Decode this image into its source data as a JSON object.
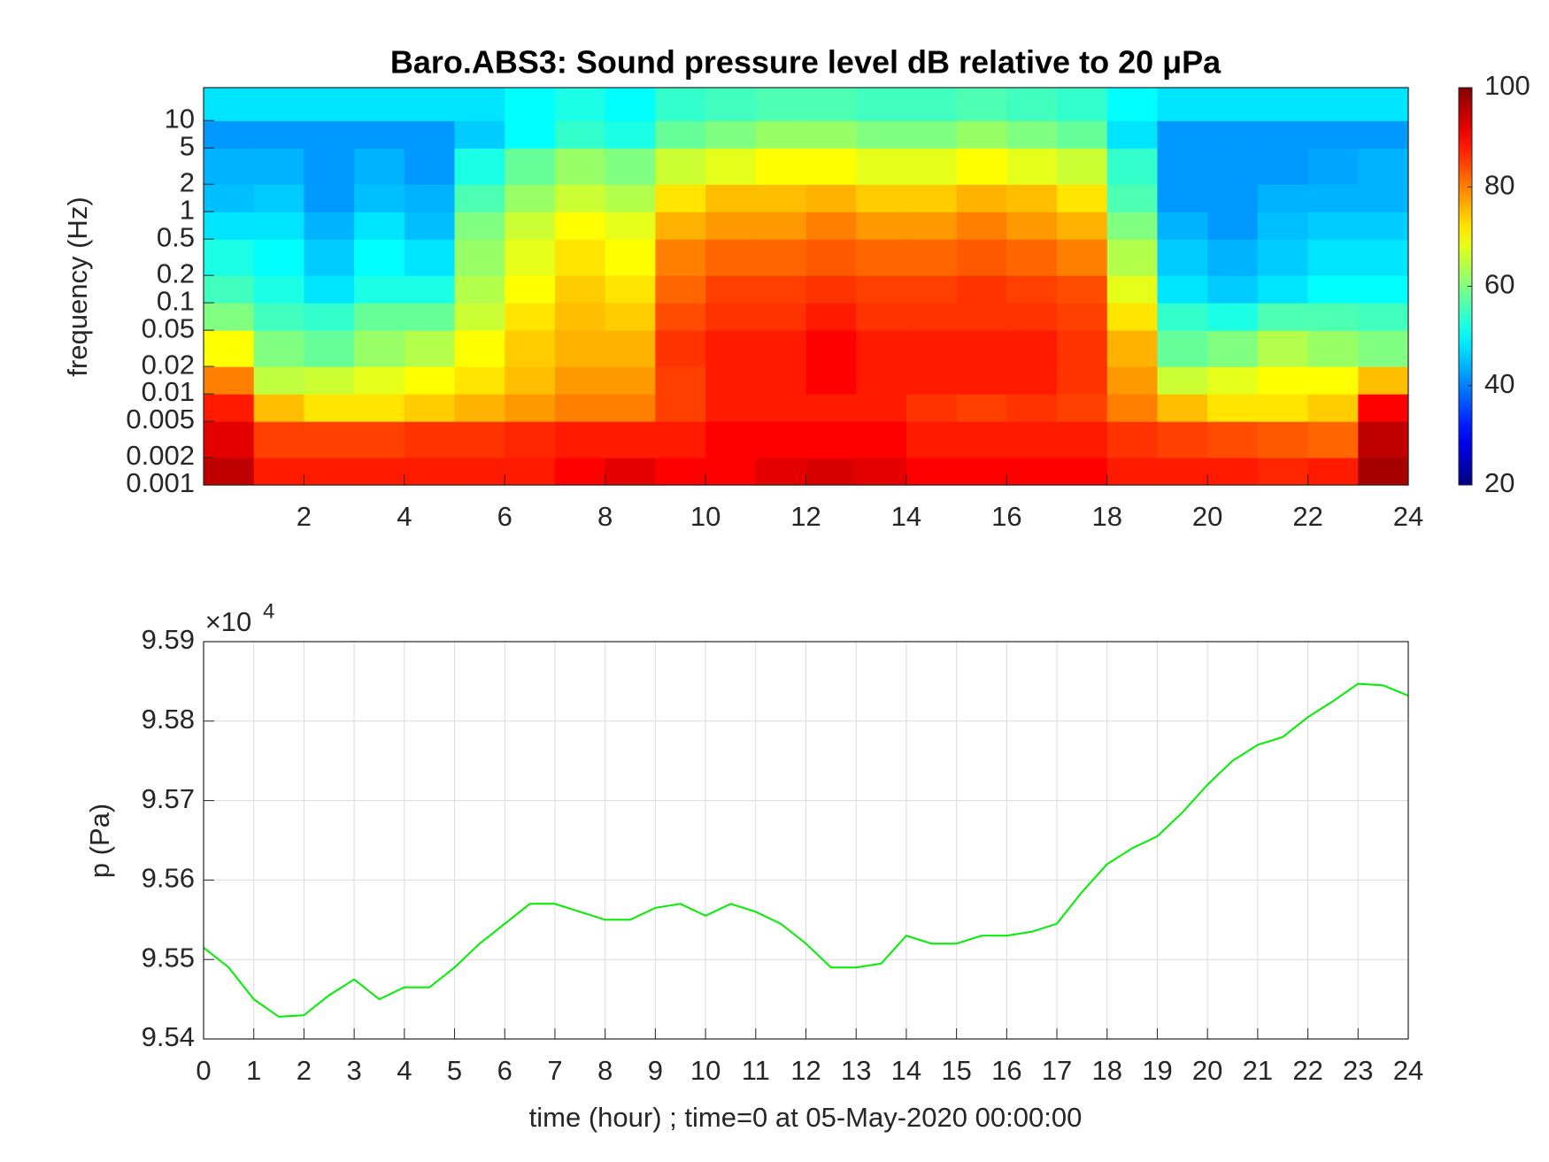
{
  "chart_data": [
    {
      "type": "heatmap",
      "title": "Baro.ABS3: Sound pressure level dB relative to 20 μPa",
      "ylabel": "frequency (Hz)",
      "yscale": "log",
      "colormap": "jet",
      "x_edges": [
        0,
        1,
        2,
        3,
        4,
        5,
        6,
        7,
        8,
        9,
        10,
        11,
        12,
        13,
        14,
        15,
        16,
        17,
        18,
        19,
        20,
        21,
        22,
        23,
        24
      ],
      "y_edges": [
        0.001,
        0.002,
        0.005,
        0.01,
        0.02,
        0.05,
        0.1,
        0.2,
        0.5,
        1,
        2,
        5,
        10,
        23
      ],
      "values": [
        [
          95,
          88,
          88,
          88,
          88,
          88,
          88,
          90,
          92,
          90,
          90,
          92,
          93,
          92,
          90,
          90,
          90,
          90,
          88,
          88,
          88,
          87,
          88,
          97
        ],
        [
          92,
          85,
          85,
          85,
          86,
          86,
          87,
          88,
          88,
          88,
          90,
          90,
          90,
          90,
          88,
          88,
          88,
          88,
          86,
          85,
          84,
          83,
          82,
          95
        ],
        [
          88,
          75,
          72,
          72,
          74,
          76,
          78,
          80,
          80,
          85,
          88,
          88,
          88,
          88,
          86,
          85,
          86,
          85,
          80,
          75,
          72,
          72,
          74,
          90
        ],
        [
          80,
          65,
          66,
          68,
          70,
          72,
          75,
          78,
          78,
          85,
          88,
          88,
          90,
          88,
          88,
          88,
          88,
          86,
          78,
          66,
          68,
          70,
          70,
          75
        ],
        [
          70,
          60,
          58,
          62,
          64,
          70,
          74,
          76,
          76,
          86,
          88,
          88,
          90,
          88,
          88,
          88,
          88,
          86,
          76,
          58,
          60,
          64,
          62,
          60
        ],
        [
          60,
          55,
          54,
          58,
          58,
          66,
          72,
          75,
          74,
          84,
          86,
          86,
          88,
          86,
          86,
          86,
          86,
          85,
          72,
          54,
          52,
          56,
          56,
          55
        ],
        [
          55,
          52,
          48,
          52,
          52,
          64,
          70,
          74,
          72,
          82,
          85,
          85,
          86,
          85,
          85,
          86,
          85,
          84,
          68,
          48,
          46,
          48,
          50,
          50
        ],
        [
          52,
          50,
          46,
          50,
          48,
          62,
          68,
          72,
          70,
          80,
          82,
          82,
          83,
          82,
          82,
          83,
          82,
          80,
          64,
          46,
          44,
          46,
          48,
          48
        ],
        [
          48,
          48,
          44,
          48,
          45,
          60,
          66,
          70,
          68,
          76,
          78,
          78,
          80,
          78,
          78,
          80,
          78,
          76,
          60,
          44,
          42,
          45,
          46,
          46
        ],
        [
          45,
          46,
          42,
          45,
          44,
          56,
          62,
          66,
          64,
          72,
          75,
          75,
          76,
          74,
          74,
          76,
          75,
          72,
          56,
          42,
          42,
          44,
          44,
          44
        ],
        [
          44,
          44,
          42,
          44,
          42,
          52,
          58,
          62,
          60,
          66,
          68,
          70,
          70,
          68,
          68,
          70,
          68,
          66,
          54,
          42,
          42,
          42,
          43,
          44
        ],
        [
          42,
          42,
          42,
          42,
          42,
          46,
          50,
          54,
          52,
          58,
          60,
          62,
          62,
          60,
          60,
          62,
          60,
          58,
          48,
          42,
          42,
          42,
          42,
          42
        ],
        [
          48,
          48,
          48,
          48,
          48,
          48,
          50,
          52,
          50,
          54,
          55,
          56,
          56,
          55,
          55,
          56,
          55,
          54,
          50,
          48,
          48,
          48,
          48,
          48
        ]
      ],
      "xlim": [
        0,
        24
      ],
      "xticks": [
        2,
        4,
        6,
        8,
        10,
        12,
        14,
        16,
        18,
        20,
        22,
        24
      ],
      "ylim": [
        0.001,
        23
      ],
      "yticks": [
        0.001,
        0.002,
        0.005,
        0.01,
        0.02,
        0.05,
        0.1,
        0.2,
        0.5,
        1,
        2,
        5,
        10
      ],
      "clim": [
        20,
        100
      ],
      "cticks": [
        20,
        40,
        60,
        80,
        100
      ]
    },
    {
      "type": "line",
      "xlabel": "time (hour) ; time=0 at 05-May-2020 00:00:00",
      "ylabel": "p (Pa)",
      "y_multiplier": {
        "base": "×10",
        "exponent": "4"
      },
      "color": "#00ee00",
      "grid": true,
      "x": [
        0,
        0.5,
        1,
        1.5,
        2,
        2.5,
        3,
        3.5,
        4,
        4.5,
        5,
        5.5,
        6,
        6.5,
        7,
        7.5,
        8,
        8.5,
        9,
        9.5,
        10,
        10.5,
        11,
        11.5,
        12,
        12.5,
        13,
        13.5,
        14,
        14.5,
        15,
        15.5,
        16,
        16.5,
        17,
        17.5,
        18,
        18.5,
        19,
        19.5,
        20,
        20.5,
        21,
        21.5,
        22,
        22.5,
        23,
        23.5,
        24
      ],
      "values": [
        95515,
        95490,
        95450,
        95428,
        95430,
        95455,
        95475,
        95450,
        95465,
        95465,
        95490,
        95520,
        95545,
        95570,
        95570,
        95560,
        95550,
        95550,
        95565,
        95570,
        95555,
        95570,
        95560,
        95545,
        95520,
        95490,
        95490,
        95495,
        95530,
        95520,
        95520,
        95530,
        95530,
        95535,
        95545,
        95585,
        95620,
        95640,
        95655,
        95685,
        95720,
        95750,
        95770,
        95780,
        95805,
        95825,
        95847,
        95845,
        95832
      ],
      "xlim": [
        0,
        24
      ],
      "xticks": [
        0,
        1,
        2,
        3,
        4,
        5,
        6,
        7,
        8,
        9,
        10,
        11,
        12,
        13,
        14,
        15,
        16,
        17,
        18,
        19,
        20,
        21,
        22,
        23,
        24
      ],
      "ylim": [
        95400,
        95900
      ],
      "yticks": [
        {
          "value": 95400,
          "label": "9.54"
        },
        {
          "value": 95500,
          "label": "9.55"
        },
        {
          "value": 95600,
          "label": "9.56"
        },
        {
          "value": 95700,
          "label": "9.57"
        },
        {
          "value": 95800,
          "label": "9.58"
        },
        {
          "value": 95900,
          "label": "9.59"
        }
      ]
    }
  ]
}
